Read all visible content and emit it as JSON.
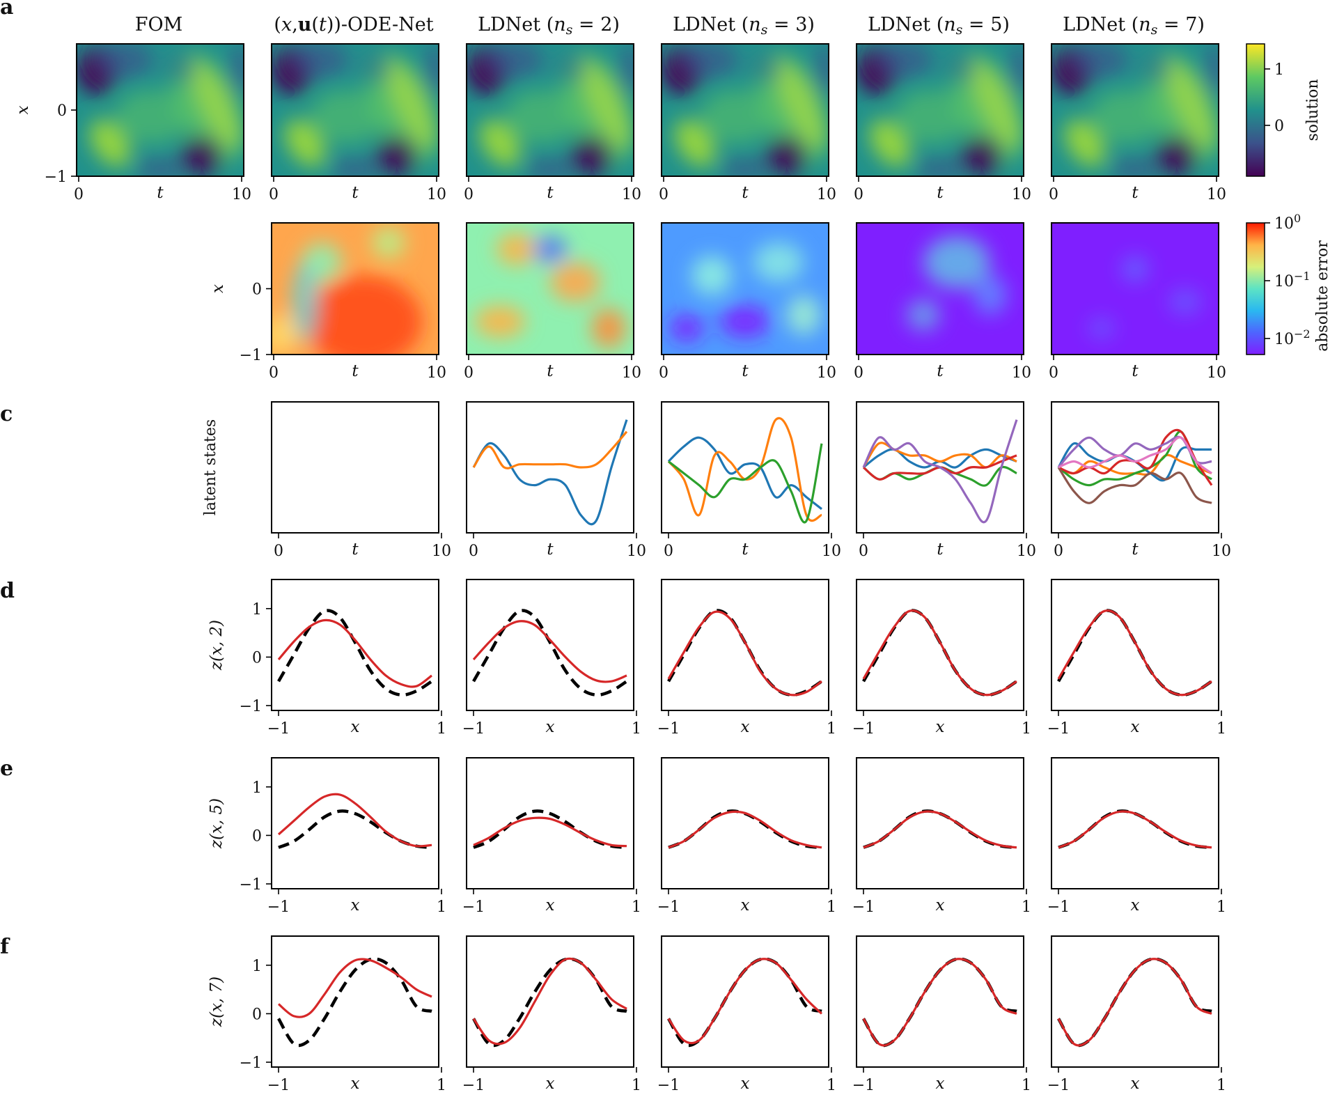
{
  "panel_labels": {
    "a": "a",
    "c": "c",
    "d": "d",
    "e": "e",
    "f": "f"
  },
  "column_titles": [
    "FOM",
    "(x,u(t))-ODE-Net",
    "LDNet (n_s = 2)",
    "LDNet (n_s = 3)",
    "LDNet (n_s = 5)",
    "LDNet (n_s = 7)"
  ],
  "colorbars": {
    "solution": {
      "label": "solution",
      "ticks": [
        "1",
        "0"
      ],
      "colors": [
        "#fde725",
        "#5ec962",
        "#21918c",
        "#3b528b",
        "#440154"
      ]
    },
    "error": {
      "label": "absolute error",
      "ticks": [
        "10^0",
        "10^-1",
        "10^-2"
      ],
      "colors": [
        "#ff1a00",
        "#ffb347",
        "#d7f07a",
        "#5de3c4",
        "#2ab8f0",
        "#4e64ff",
        "#7f1fff"
      ]
    }
  },
  "axis_labels": {
    "t": "t",
    "x": "x",
    "latent": "latent states",
    "z2": "z(x, 2)",
    "z5": "z(x, 5)",
    "z7": "z(x, 7)"
  },
  "ticks": {
    "t": [
      "0",
      "10"
    ],
    "x_space": [
      "0",
      "−1"
    ],
    "x_domain": [
      "−1",
      "1"
    ],
    "z": [
      "1",
      "0",
      "−1"
    ]
  },
  "chart_data": [
    {
      "type": "heatmap",
      "row": "solution",
      "columns": [
        "FOM",
        "(x,u(t))-ODE-Net",
        "LDNet (n_s = 2)",
        "LDNet (n_s = 3)",
        "LDNet (n_s = 5)",
        "LDNet (n_s = 7)"
      ],
      "xlabel": "t",
      "ylabel": "x",
      "xlim": [
        0,
        10
      ],
      "ylim": [
        -1,
        1
      ],
      "colorbar": "solution"
    },
    {
      "type": "heatmap",
      "row": "absolute error",
      "columns": [
        "(x,u(t))-ODE-Net",
        "LDNet (n_s = 2)",
        "LDNet (n_s = 3)",
        "LDNet (n_s = 5)",
        "LDNet (n_s = 7)"
      ],
      "xlabel": "t",
      "ylabel": "x",
      "xlim": [
        0,
        10
      ],
      "ylim": [
        -1,
        1
      ],
      "colorbar": "absolute error"
    },
    {
      "type": "line",
      "row": "latent states",
      "xlabel": "t",
      "xlim": [
        0,
        10
      ],
      "series_colors": [
        "#1f77b4",
        "#ff7f0e",
        "#2ca02c",
        "#d62728",
        "#9467bd",
        "#8c564b",
        "#e377c2"
      ],
      "columns": [
        {
          "name": "(x,u(t))-ODE-Net",
          "series": []
        },
        {
          "name": "LDNet (n_s = 2)",
          "t": [
            0,
            1,
            2,
            3,
            4,
            5,
            6,
            7,
            8,
            9,
            10
          ],
          "series": [
            {
              "name": "s1",
              "values": [
                0.0,
                0.4,
                0.2,
                -0.2,
                -0.3,
                -0.2,
                -0.3,
                -0.8,
                -0.9,
                0.0,
                0.8
              ]
            },
            {
              "name": "s2",
              "values": [
                0.0,
                0.35,
                0.0,
                0.05,
                0.05,
                0.05,
                0.05,
                0.0,
                0.05,
                0.3,
                0.6
              ]
            }
          ]
        },
        {
          "name": "LDNet (n_s = 3)",
          "t": [
            0,
            1,
            2,
            3,
            4,
            5,
            6,
            7,
            8,
            9,
            10
          ],
          "series": [
            {
              "name": "s1",
              "values": [
                0.1,
                0.35,
                0.5,
                0.3,
                -0.1,
                0.05,
                0.0,
                -0.5,
                -0.3,
                -0.5,
                -0.7
              ]
            },
            {
              "name": "s2",
              "values": [
                0.1,
                -0.2,
                -0.8,
                0.2,
                0.1,
                -0.2,
                0.0,
                0.8,
                0.5,
                -0.8,
                -0.8
              ]
            },
            {
              "name": "s3",
              "values": [
                0.1,
                -0.1,
                -0.3,
                -0.5,
                -0.2,
                -0.2,
                0.0,
                0.1,
                -0.4,
                -0.9,
                0.4
              ]
            }
          ]
        },
        {
          "name": "LDNet (n_s = 5)",
          "t": [
            0,
            1,
            2,
            3,
            4,
            5,
            6,
            7,
            8,
            9,
            10
          ],
          "series": [
            {
              "name": "s1",
              "values": [
                0.0,
                0.2,
                0.3,
                0.1,
                0.0,
                0.1,
                0.0,
                0.2,
                0.3,
                0.2,
                0.1
              ]
            },
            {
              "name": "s2",
              "values": [
                0.0,
                0.4,
                0.3,
                0.2,
                0.2,
                0.1,
                0.2,
                0.2,
                0.0,
                0.2,
                0.1
              ]
            },
            {
              "name": "s3",
              "values": [
                0.0,
                -0.2,
                -0.1,
                -0.2,
                -0.1,
                0.0,
                -0.1,
                -0.2,
                -0.3,
                0.0,
                -0.1
              ]
            },
            {
              "name": "s4",
              "values": [
                0.0,
                -0.2,
                -0.1,
                -0.1,
                -0.1,
                0.0,
                -0.1,
                0.0,
                0.0,
                0.1,
                0.2
              ]
            },
            {
              "name": "s5",
              "values": [
                0.0,
                0.5,
                0.3,
                0.4,
                0.1,
                0.0,
                -0.2,
                -0.6,
                -0.9,
                0.0,
                0.8
              ]
            }
          ]
        },
        {
          "name": "LDNet (n_s = 7)",
          "t": [
            0,
            1,
            2,
            3,
            4,
            5,
            6,
            7,
            8,
            9,
            10
          ],
          "series": [
            {
              "name": "s1",
              "values": [
                0.0,
                0.4,
                0.2,
                0.1,
                0.2,
                0.1,
                -0.1,
                -0.2,
                0.3,
                0.3,
                0.3
              ]
            },
            {
              "name": "s2",
              "values": [
                0.0,
                -0.1,
                0.1,
                0.0,
                -0.1,
                -0.1,
                -0.1,
                0.2,
                0.1,
                0.0,
                -0.1
              ]
            },
            {
              "name": "s3",
              "values": [
                0.0,
                -0.2,
                -0.3,
                -0.2,
                -0.2,
                -0.1,
                0.0,
                0.2,
                0.6,
                0.0,
                -0.2
              ]
            },
            {
              "name": "s4",
              "values": [
                0.0,
                -0.1,
                0.0,
                -0.1,
                0.1,
                0.1,
                0.0,
                0.5,
                0.6,
                0.1,
                -0.3
              ]
            },
            {
              "name": "s5",
              "values": [
                0.0,
                0.3,
                0.5,
                0.3,
                0.2,
                0.4,
                0.3,
                0.4,
                0.5,
                0.1,
                0.1
              ]
            },
            {
              "name": "s6",
              "values": [
                0.0,
                -0.4,
                -0.6,
                -0.4,
                -0.3,
                -0.3,
                -0.1,
                -0.2,
                -0.1,
                -0.5,
                -0.6
              ]
            },
            {
              "name": "s7",
              "values": [
                0.0,
                0.1,
                0.0,
                0.1,
                0.2,
                0.1,
                0.2,
                0.3,
                0.5,
                0.1,
                -0.1
              ]
            }
          ]
        }
      ]
    },
    {
      "type": "line",
      "row": "z(x, 2)",
      "xlabel": "x",
      "ylabel": "z(x, 2)",
      "xlim": [
        -1,
        1
      ],
      "ylim": [
        -1.1,
        1.6
      ],
      "x": [
        -1.0,
        -0.8,
        -0.6,
        -0.4,
        -0.2,
        0.0,
        0.2,
        0.4,
        0.6,
        0.8,
        1.0
      ],
      "reference": {
        "name": "FOM",
        "values": [
          -0.5,
          0.05,
          0.6,
          0.95,
          0.82,
          0.3,
          -0.28,
          -0.65,
          -0.78,
          -0.7,
          -0.5
        ]
      },
      "predictions": [
        {
          "name": "(x,u(t))-ODE-Net",
          "values": [
            -0.05,
            0.32,
            0.62,
            0.76,
            0.67,
            0.35,
            -0.05,
            -0.38,
            -0.56,
            -0.6,
            -0.38
          ]
        },
        {
          "name": "LDNet (n_s = 2)",
          "values": [
            -0.05,
            0.3,
            0.6,
            0.74,
            0.66,
            0.35,
            0.0,
            -0.3,
            -0.48,
            -0.5,
            -0.38
          ]
        },
        {
          "name": "LDNet (n_s = 3)",
          "values": [
            -0.45,
            0.1,
            0.62,
            0.93,
            0.8,
            0.3,
            -0.3,
            -0.65,
            -0.78,
            -0.72,
            -0.5
          ]
        },
        {
          "name": "LDNet (n_s = 5)",
          "values": [
            -0.45,
            0.1,
            0.62,
            0.95,
            0.82,
            0.3,
            -0.28,
            -0.65,
            -0.78,
            -0.7,
            -0.5
          ]
        },
        {
          "name": "LDNet (n_s = 7)",
          "values": [
            -0.45,
            0.1,
            0.62,
            0.95,
            0.82,
            0.3,
            -0.28,
            -0.65,
            -0.78,
            -0.7,
            -0.5
          ]
        }
      ]
    },
    {
      "type": "line",
      "row": "z(x, 5)",
      "xlabel": "x",
      "ylabel": "z(x, 5)",
      "xlim": [
        -1,
        1
      ],
      "ylim": [
        -1.1,
        1.6
      ],
      "x": [
        -1.0,
        -0.8,
        -0.6,
        -0.4,
        -0.2,
        0.0,
        0.2,
        0.4,
        0.6,
        0.8,
        1.0
      ],
      "reference": {
        "name": "FOM",
        "values": [
          -0.25,
          -0.12,
          0.12,
          0.38,
          0.5,
          0.45,
          0.28,
          0.06,
          -0.12,
          -0.22,
          -0.25
        ]
      },
      "predictions": [
        {
          "name": "(x,u(t))-ODE-Net",
          "values": [
            0.02,
            0.3,
            0.58,
            0.8,
            0.84,
            0.66,
            0.38,
            0.08,
            -0.12,
            -0.22,
            -0.2
          ]
        },
        {
          "name": "LDNet (n_s = 2)",
          "values": [
            -0.2,
            -0.05,
            0.15,
            0.3,
            0.36,
            0.34,
            0.22,
            0.05,
            -0.1,
            -0.2,
            -0.22
          ]
        },
        {
          "name": "LDNet (n_s = 3)",
          "values": [
            -0.25,
            -0.12,
            0.12,
            0.36,
            0.48,
            0.46,
            0.3,
            0.08,
            -0.1,
            -0.2,
            -0.25
          ]
        },
        {
          "name": "LDNet (n_s = 5)",
          "values": [
            -0.25,
            -0.12,
            0.12,
            0.37,
            0.49,
            0.45,
            0.28,
            0.07,
            -0.11,
            -0.21,
            -0.25
          ]
        },
        {
          "name": "LDNet (n_s = 7)",
          "values": [
            -0.25,
            -0.12,
            0.12,
            0.37,
            0.49,
            0.45,
            0.28,
            0.07,
            -0.11,
            -0.21,
            -0.25
          ]
        }
      ]
    },
    {
      "type": "line",
      "row": "z(x, 7)",
      "xlabel": "x",
      "ylabel": "z(x, 7)",
      "xlim": [
        -1,
        1
      ],
      "ylim": [
        -1.1,
        1.6
      ],
      "x": [
        -1.0,
        -0.8,
        -0.6,
        -0.4,
        -0.2,
        0.0,
        0.2,
        0.4,
        0.6,
        0.8,
        1.0
      ],
      "reference": {
        "name": "FOM",
        "values": [
          -0.1,
          -0.62,
          -0.55,
          -0.1,
          0.45,
          0.9,
          1.12,
          1.05,
          0.7,
          0.15,
          0.05
        ]
      },
      "predictions": [
        {
          "name": "(x,u(t))-ODE-Net",
          "values": [
            0.2,
            -0.05,
            0.0,
            0.4,
            0.85,
            1.1,
            1.1,
            0.95,
            0.75,
            0.5,
            0.35
          ]
        },
        {
          "name": "LDNet (n_s = 2)",
          "values": [
            -0.1,
            -0.55,
            -0.6,
            -0.3,
            0.25,
            0.8,
            1.12,
            1.05,
            0.7,
            0.3,
            0.1
          ]
        },
        {
          "name": "LDNet (n_s = 3)",
          "values": [
            -0.1,
            -0.55,
            -0.55,
            -0.1,
            0.45,
            0.9,
            1.12,
            1.05,
            0.7,
            0.3,
            0.0
          ]
        },
        {
          "name": "LDNet (n_s = 5)",
          "values": [
            -0.1,
            -0.62,
            -0.55,
            -0.1,
            0.45,
            0.9,
            1.12,
            1.05,
            0.7,
            0.15,
            0.0
          ]
        },
        {
          "name": "LDNet (n_s = 7)",
          "values": [
            -0.1,
            -0.62,
            -0.55,
            -0.1,
            0.45,
            0.9,
            1.12,
            1.05,
            0.7,
            0.15,
            0.0
          ]
        }
      ]
    }
  ]
}
